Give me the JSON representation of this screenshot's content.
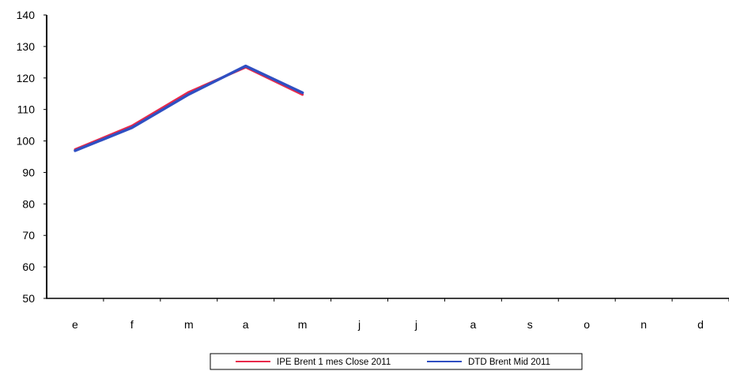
{
  "chart_data": {
    "type": "line",
    "categories": [
      "e",
      "f",
      "m",
      "a",
      "m",
      "j",
      "j",
      "a",
      "s",
      "o",
      "n",
      "d"
    ],
    "series": [
      {
        "name": "IPE Brent 1 mes Close 2011",
        "color": "#e8294a",
        "values": [
          97.3,
          104.8,
          115.5,
          123.4,
          114.7,
          null,
          null,
          null,
          null,
          null,
          null,
          null
        ]
      },
      {
        "name": "DTD Brent Mid 2011",
        "color": "#2f4fc2",
        "values": [
          96.9,
          104.2,
          114.8,
          123.8,
          115.3,
          null,
          null,
          null,
          null,
          null,
          null,
          null
        ]
      }
    ],
    "ylim": [
      50,
      140
    ],
    "yticks": [
      50,
      60,
      70,
      80,
      90,
      100,
      110,
      120,
      130,
      140
    ],
    "grid": false,
    "legend_position": "bottom-center"
  }
}
